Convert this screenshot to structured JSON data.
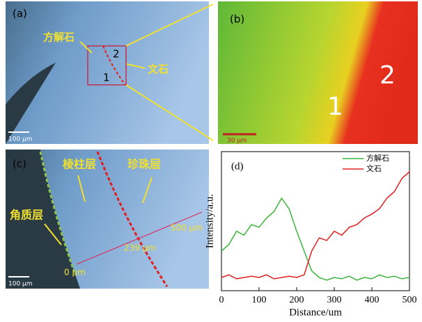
{
  "panels": {
    "a": {
      "label": "(a)",
      "annotations": [
        "方解石",
        "文石",
        "1",
        "2"
      ],
      "scale_bar": "100 µm"
    },
    "b": {
      "label": "(b)",
      "region_labels": [
        "1",
        "2"
      ],
      "scale_bar": "30 µm"
    },
    "c": {
      "label": "(c)",
      "annotations": [
        "棱柱层",
        "珍珠层",
        "角质层",
        "500 µm",
        "239 µm",
        "0 µm"
      ],
      "scale_bar": "100 µm"
    }
  },
  "chart_data": {
    "type": "line",
    "panel_label": "(d)",
    "x_label": "Distance/um",
    "y_label": "Intensity/a.u.",
    "x": [
      0,
      20,
      40,
      60,
      80,
      100,
      120,
      140,
      160,
      180,
      200,
      220,
      240,
      260,
      280,
      300,
      320,
      340,
      360,
      380,
      400,
      420,
      440,
      460,
      480,
      500
    ],
    "series": [
      {
        "name": "方解石",
        "color": "#3cb43c",
        "values": [
          0.3,
          0.35,
          0.45,
          0.42,
          0.5,
          0.48,
          0.55,
          0.6,
          0.7,
          0.62,
          0.45,
          0.3,
          0.15,
          0.1,
          0.08,
          0.1,
          0.09,
          0.11,
          0.08,
          0.1,
          0.09,
          0.12,
          0.1,
          0.11,
          0.09,
          0.1
        ]
      },
      {
        "name": "文石",
        "color": "#e02020",
        "values": [
          0.1,
          0.12,
          0.09,
          0.1,
          0.11,
          0.1,
          0.12,
          0.09,
          0.1,
          0.11,
          0.1,
          0.12,
          0.3,
          0.4,
          0.38,
          0.45,
          0.42,
          0.48,
          0.5,
          0.55,
          0.58,
          0.62,
          0.7,
          0.75,
          0.85,
          0.9
        ]
      }
    ],
    "xlim": [
      0,
      500
    ],
    "xticks": [
      0,
      100,
      200,
      300,
      400,
      500
    ],
    "ylim": [
      0,
      1
    ],
    "legend": "upper right"
  }
}
